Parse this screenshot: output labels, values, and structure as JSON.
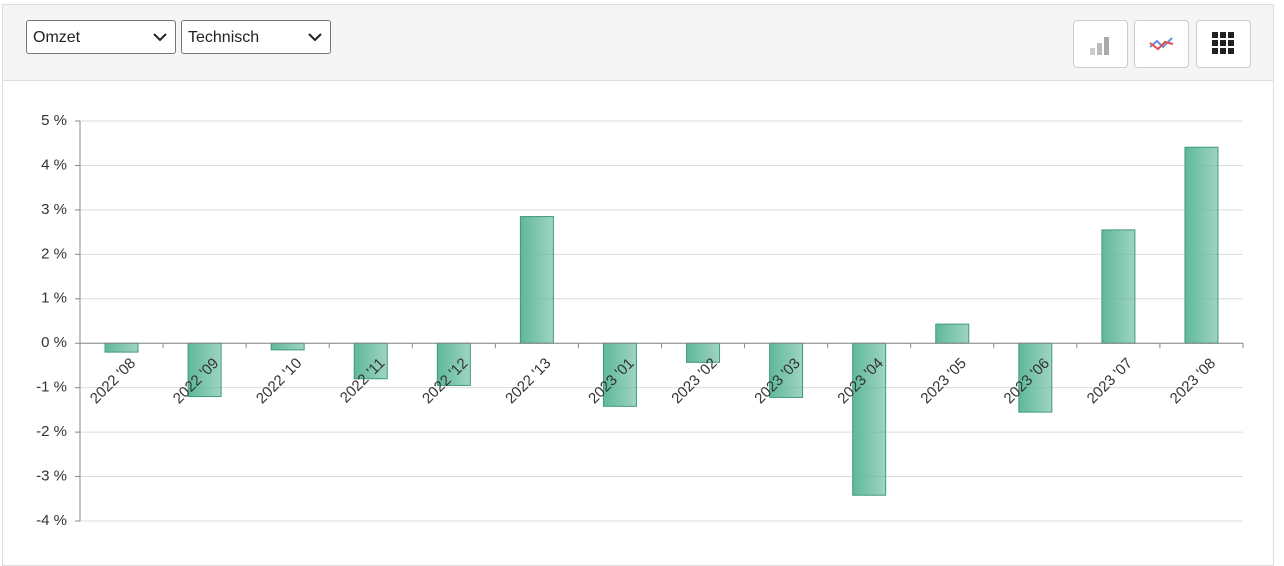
{
  "toolbar": {
    "selects": [
      "Omzet",
      "Technisch"
    ]
  },
  "chart_data": {
    "type": "bar",
    "categories": [
      "2022 '08",
      "2022 '09",
      "2022 '10",
      "2022 '11",
      "2022 '12",
      "2022 '13",
      "2023 '01",
      "2023 '02",
      "2023 '03",
      "2023 '04",
      "2023 '05",
      "2023 '06",
      "2023 '07",
      "2023 '08"
    ],
    "values": [
      -0.2,
      -1.2,
      -0.15,
      -0.8,
      -0.95,
      2.85,
      -1.42,
      -0.43,
      -1.22,
      -3.42,
      0.43,
      -1.55,
      2.55,
      4.41
    ],
    "color": "#5fb89a",
    "ylim": [
      -4,
      5
    ],
    "yticks": [
      {
        "value": -4,
        "label": "-4 %"
      },
      {
        "value": -3,
        "label": "-3 %"
      },
      {
        "value": -2,
        "label": "-2 %"
      },
      {
        "value": -1,
        "label": "-1 %"
      },
      {
        "value": 0,
        "label": "0 %"
      },
      {
        "value": 1,
        "label": "1 %"
      },
      {
        "value": 2,
        "label": "2 %"
      },
      {
        "value": 3,
        "label": "3 %"
      },
      {
        "value": 4,
        "label": "4 %"
      },
      {
        "value": 5,
        "label": "5 %"
      }
    ],
    "grid": true
  }
}
